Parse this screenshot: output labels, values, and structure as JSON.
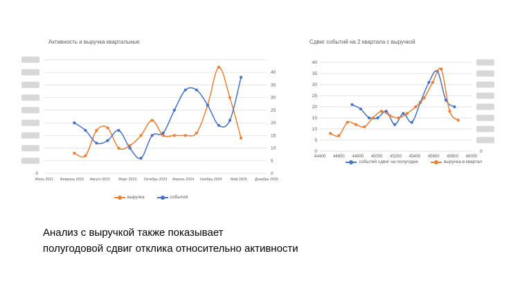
{
  "caption": {
    "line1": "Анализ с выручкой также показывает",
    "line2": "полугодовой сдвиг отклика относительно активности"
  },
  "colors": {
    "series_blue": "#4472C4",
    "series_orange": "#ED7D31",
    "axis_text": "#595959",
    "gridline": "#D9D9D9",
    "redacted_block": "#D8D8D8"
  },
  "chart_data": [
    {
      "type": "line",
      "title": "Активность и выручка квартальные",
      "x_tick_labels": [
        "Июль 2021",
        "Февраль 2022",
        "Август 2022",
        "Март 2023",
        "Октябрь 2023",
        "Апрель 2024",
        "Ноябрь 2024",
        "Май 2025",
        "Декабрь 2025"
      ],
      "ylim": [
        0,
        45
      ],
      "y_tick_step": 5,
      "y_axis_right_labels": [
        0,
        5,
        10,
        15,
        20,
        25,
        30,
        35,
        40
      ],
      "y_axis_left": {
        "redacted": true,
        "visible_label": "0"
      },
      "grid": "horizontal",
      "legend_position": "bottom",
      "series": [
        {
          "name": "выручка",
          "color": "#ED7D31",
          "values": [
            8,
            7,
            17,
            18,
            10,
            11,
            15,
            21,
            15,
            15,
            15,
            16,
            27,
            42,
            30,
            14
          ]
        },
        {
          "name": "событий",
          "color": "#4472C4",
          "values": [
            20,
            17,
            12,
            13,
            17,
            10,
            6,
            15,
            16,
            25,
            33,
            33,
            27,
            19,
            21,
            38
          ]
        }
      ]
    },
    {
      "type": "line",
      "title": "Сдвиг событий на 2 квартала с выручкой",
      "xlim": [
        44400,
        46000
      ],
      "x_ticks": [
        44400,
        44600,
        44800,
        45000,
        45200,
        45400,
        45600,
        45800,
        46000
      ],
      "ylim": [
        0,
        40
      ],
      "y_tick_step": 5,
      "y_axis_left_labels": [
        0,
        5,
        10,
        15,
        20,
        25,
        30,
        35,
        40
      ],
      "y_axis_right": {
        "redacted": true,
        "visible_label": "0"
      },
      "grid": "horizontal",
      "legend_position": "bottom",
      "series": [
        {
          "name": "событий сдвиг на полугодие",
          "color": "#4472C4",
          "x": [
            44740,
            44830,
            44920,
            45010,
            45100,
            45190,
            45280,
            45370,
            45460,
            45550,
            45640,
            45730,
            45820
          ],
          "values": [
            21,
            19,
            15,
            15,
            18,
            12,
            17,
            13,
            22,
            31,
            36,
            23,
            20
          ]
        },
        {
          "name": "выручка в квартал",
          "color": "#ED7D31",
          "x": [
            44510,
            44600,
            44690,
            44780,
            44870,
            44960,
            45050,
            45140,
            45230,
            45320,
            45410,
            45500,
            45590,
            45680,
            45770,
            45860
          ],
          "values": [
            8,
            7,
            13,
            12,
            11,
            15,
            18,
            16,
            15,
            17,
            20,
            24,
            31,
            37,
            18,
            14
          ]
        }
      ]
    }
  ]
}
